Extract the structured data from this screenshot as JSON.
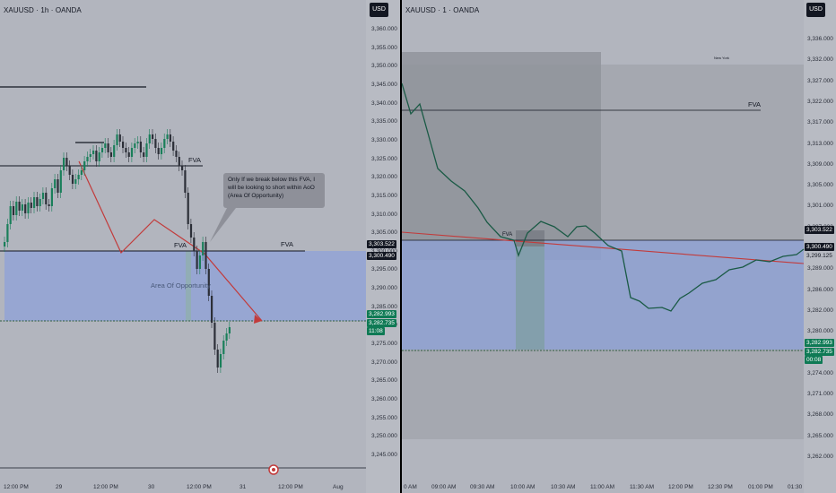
{
  "left_chart": {
    "symbol": "XAUUSD · 1h · OANDA",
    "currency": "USD",
    "y_ticks": [
      "3,360.000",
      "3,355.000",
      "3,350.000",
      "3,345.000",
      "3,340.000",
      "3,335.000",
      "3,330.000",
      "3,325.000",
      "3,320.000",
      "3,315.000",
      "3,310.000",
      "3,305.000",
      "3,300.000",
      "3,295.000",
      "3,290.000",
      "3,285.000",
      "3,280.000",
      "3,275.000",
      "3,270.000",
      "3,265.000",
      "3,260.000",
      "3,255.000",
      "3,250.000",
      "3,245.000"
    ],
    "price_tags": {
      "fva_high": "3,303.522",
      "fva_low": "3,300.490",
      "aoo_low": "3,282.993",
      "last": "3,282.735",
      "countdown": "11:08"
    },
    "x_labels": [
      "12:00 PM",
      "29",
      "12:00 PM",
      "30",
      "12:00 PM",
      "31",
      "12:00 PM",
      "Aug"
    ],
    "fva_label_1": "FVA",
    "fva_label_2": "FVA",
    "fva_label_3": "FVA",
    "aoo_label": "Area Of Opportunity",
    "note": "Only If we break below this FVA, I will be looking to short within AoO (Area Of Opportunity)"
  },
  "right_chart": {
    "symbol": "XAUUSD · 1 · OANDA",
    "currency": "USD",
    "y_ticks": [
      "3,336.000",
      "3,332.000",
      "3,327.000",
      "3,322.000",
      "3,317.000",
      "3,313.000",
      "3,309.000",
      "3,305.000",
      "3,301.000",
      "3,297.000",
      "3,293.000",
      "3,289.000",
      "3,286.000",
      "3,282.000",
      "3,280.000",
      "3,277.000",
      "3,274.000",
      "3,271.000",
      "3,268.000",
      "3,265.000",
      "3,262.000"
    ],
    "price_tags": {
      "fva_high": "3,303.522",
      "fva_low": "3,300.490",
      "current": "3,299.125",
      "aoo_low": "3,282.993",
      "last": "3,282.735",
      "countdown": "00:08"
    },
    "x_labels": [
      "0 AM",
      "09:00 AM",
      "09:30 AM",
      "10:00 AM",
      "10:30 AM",
      "11:00 AM",
      "11:30 AM",
      "12:00 PM",
      "12:30 PM",
      "01:00 PM",
      "01:30"
    ],
    "fva_label": "FVA",
    "fv_small": "FVA",
    "session_label": "New York"
  },
  "colors": {
    "bg": "#b2b5be",
    "zone": "#8ea2d8",
    "candle_up": "#1a7f5a",
    "candle_down": "#2c2f38",
    "trend": "#c23b3b",
    "tag_green": "#0f7a55",
    "tag_dark": "#131722"
  }
}
